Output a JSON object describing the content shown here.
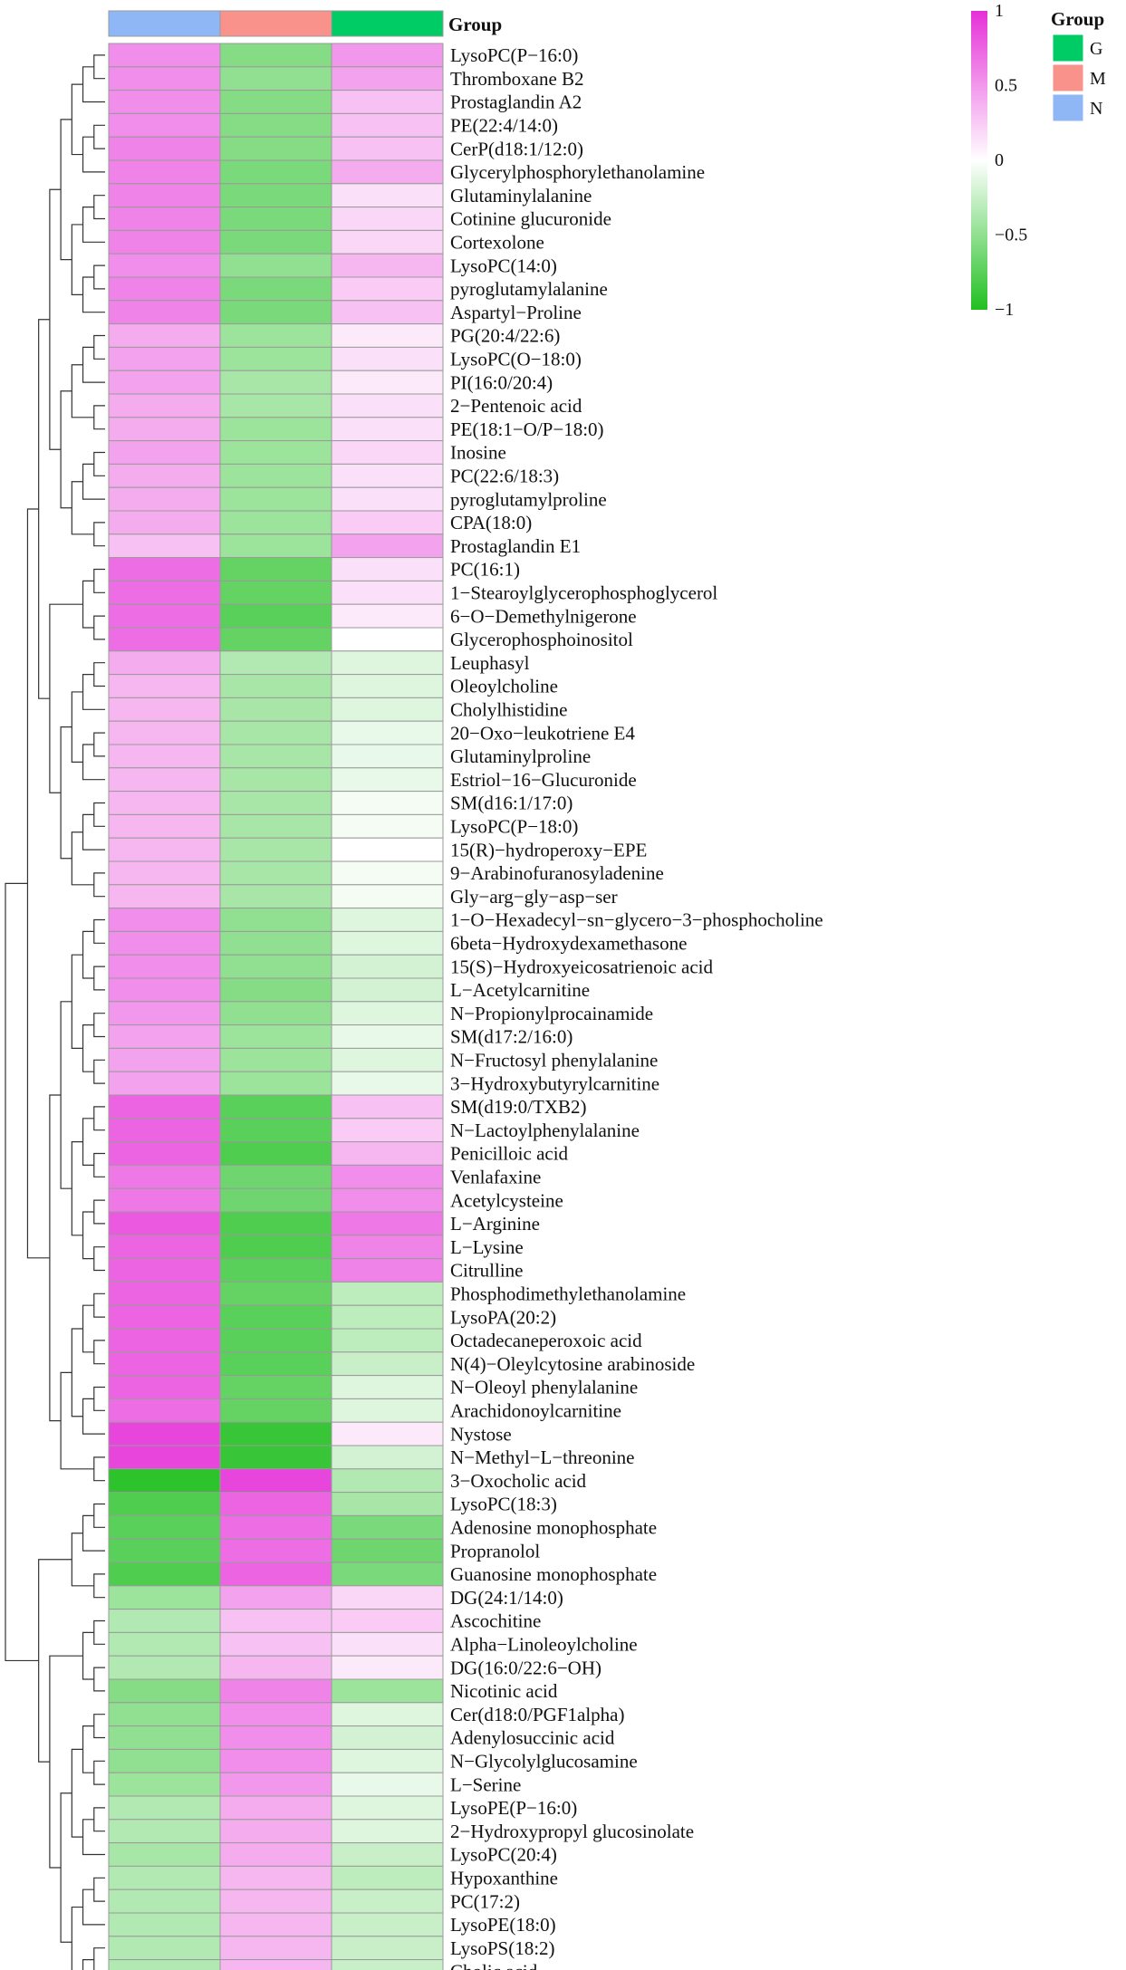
{
  "chart_data": {
    "type": "heatmap",
    "columns": [
      "N",
      "M",
      "G"
    ],
    "annotation": {
      "title": "Group",
      "column_groups": [
        "N",
        "M",
        "G"
      ],
      "legend_entries": [
        {
          "label": "G",
          "color": "#00cc66"
        },
        {
          "label": "M",
          "color": "#f8928a"
        },
        {
          "label": "N",
          "color": "#8fb6f5"
        }
      ]
    },
    "color_scale": {
      "ticks": [
        {
          "value": 1,
          "label": "1"
        },
        {
          "value": 0.5,
          "label": "0.5"
        },
        {
          "value": 0,
          "label": "0"
        },
        {
          "value": -0.5,
          "label": "−0.5"
        },
        {
          "value": -1,
          "label": "−1"
        }
      ],
      "low_color": "#22c022",
      "mid_color": "#ffffff",
      "high_color": "#e530d8",
      "range": [
        -1,
        1
      ]
    },
    "rows": [
      {
        "label": "LysoPC(P−16:0)",
        "values": [
          0.55,
          -0.55,
          0.5
        ]
      },
      {
        "label": "Thromboxane B2",
        "values": [
          0.55,
          -0.5,
          0.45
        ]
      },
      {
        "label": "Prostaglandin A2",
        "values": [
          0.55,
          -0.55,
          0.3
        ]
      },
      {
        "label": "PE(22:4/14:0)",
        "values": [
          0.55,
          -0.55,
          0.3
        ]
      },
      {
        "label": "CerP(d18:1/12:0)",
        "values": [
          0.6,
          -0.55,
          0.3
        ]
      },
      {
        "label": "Glycerylphosphorylethanolamine",
        "values": [
          0.6,
          -0.6,
          0.4
        ]
      },
      {
        "label": "Glutaminylalanine",
        "values": [
          0.6,
          -0.6,
          0.15
        ]
      },
      {
        "label": "Cotinine glucuronide",
        "values": [
          0.6,
          -0.6,
          0.2
        ]
      },
      {
        "label": "Cortexolone",
        "values": [
          0.6,
          -0.6,
          0.2
        ]
      },
      {
        "label": "LysoPC(14:0)",
        "values": [
          0.55,
          -0.5,
          0.35
        ]
      },
      {
        "label": "pyroglutamylalanine",
        "values": [
          0.6,
          -0.6,
          0.25
        ]
      },
      {
        "label": "Aspartyl−Proline",
        "values": [
          0.6,
          -0.6,
          0.3
        ]
      },
      {
        "label": "PG(20:4/22:6)",
        "values": [
          0.4,
          -0.45,
          0.1
        ]
      },
      {
        "label": "LysoPC(O−18:0)",
        "values": [
          0.45,
          -0.45,
          0.15
        ]
      },
      {
        "label": "PI(16:0/20:4)",
        "values": [
          0.45,
          -0.4,
          0.1
        ]
      },
      {
        "label": "2−Pentenoic acid",
        "values": [
          0.4,
          -0.4,
          0.15
        ]
      },
      {
        "label": "PE(18:1−O/P−18:0)",
        "values": [
          0.4,
          -0.45,
          0.15
        ]
      },
      {
        "label": "Inosine",
        "values": [
          0.45,
          -0.45,
          0.2
        ]
      },
      {
        "label": "PC(22:6/18:3)",
        "values": [
          0.4,
          -0.45,
          0.15
        ]
      },
      {
        "label": "pyroglutamylproline",
        "values": [
          0.4,
          -0.45,
          0.15
        ]
      },
      {
        "label": "CPA(18:0)",
        "values": [
          0.4,
          -0.45,
          0.25
        ]
      },
      {
        "label": "Prostaglandin E1",
        "values": [
          0.3,
          -0.45,
          0.45
        ]
      },
      {
        "label": "PC(16:1)",
        "values": [
          0.7,
          -0.7,
          0.15
        ]
      },
      {
        "label": "1−Stearoylglycerophosphoglycerol",
        "values": [
          0.7,
          -0.7,
          0.15
        ]
      },
      {
        "label": "6−O−Demethylnigerone",
        "values": [
          0.7,
          -0.75,
          0.1
        ]
      },
      {
        "label": "Glycerophosphoinositol",
        "values": [
          0.7,
          -0.7,
          0.0
        ]
      },
      {
        "label": "Leuphasyl",
        "values": [
          0.4,
          -0.35,
          -0.15
        ]
      },
      {
        "label": "Oleoylcholine",
        "values": [
          0.35,
          -0.4,
          -0.15
        ]
      },
      {
        "label": "Cholylhistidine",
        "values": [
          0.35,
          -0.4,
          -0.15
        ]
      },
      {
        "label": "20−Oxo−leukotriene E4",
        "values": [
          0.35,
          -0.4,
          -0.1
        ]
      },
      {
        "label": "Glutaminylproline",
        "values": [
          0.35,
          -0.4,
          -0.1
        ]
      },
      {
        "label": "Estriol−16−Glucuronide",
        "values": [
          0.35,
          -0.4,
          -0.1
        ]
      },
      {
        "label": "SM(d16:1/17:0)",
        "values": [
          0.35,
          -0.4,
          -0.05
        ]
      },
      {
        "label": "LysoPC(P−18:0)",
        "values": [
          0.35,
          -0.4,
          -0.05
        ]
      },
      {
        "label": "15(R)−hydroperoxy−EPE",
        "values": [
          0.35,
          -0.4,
          0.0
        ]
      },
      {
        "label": "9−Arabinofuranosyladenine",
        "values": [
          0.35,
          -0.4,
          -0.05
        ]
      },
      {
        "label": "Gly−arg−gly−asp−ser",
        "values": [
          0.35,
          -0.4,
          -0.05
        ]
      },
      {
        "label": "1−O−Hexadecyl−sn−glycero−3−phosphocholine",
        "values": [
          0.55,
          -0.5,
          -0.15
        ]
      },
      {
        "label": "6beta−Hydroxydexamethasone",
        "values": [
          0.55,
          -0.5,
          -0.15
        ]
      },
      {
        "label": "15(S)−Hydroxyeicosatrienoic acid",
        "values": [
          0.55,
          -0.5,
          -0.2
        ]
      },
      {
        "label": "L−Acetylcarnitine",
        "values": [
          0.55,
          -0.55,
          -0.2
        ]
      },
      {
        "label": "N−Propionylprocainamide",
        "values": [
          0.5,
          -0.5,
          -0.15
        ]
      },
      {
        "label": "SM(d17:2/16:0)",
        "values": [
          0.45,
          -0.45,
          -0.1
        ]
      },
      {
        "label": "N−Fructosyl phenylalanine",
        "values": [
          0.45,
          -0.45,
          -0.15
        ]
      },
      {
        "label": "3−Hydroxybutyrylcarnitine",
        "values": [
          0.45,
          -0.45,
          -0.1
        ]
      },
      {
        "label": "SM(d19:0/TXB2)",
        "values": [
          0.75,
          -0.75,
          0.3
        ]
      },
      {
        "label": "N−Lactoylphenylalanine",
        "values": [
          0.75,
          -0.75,
          0.25
        ]
      },
      {
        "label": "Penicilloic acid",
        "values": [
          0.75,
          -0.8,
          0.35
        ]
      },
      {
        "label": "Venlafaxine",
        "values": [
          0.65,
          -0.65,
          0.55
        ]
      },
      {
        "label": "Acetylcysteine",
        "values": [
          0.65,
          -0.65,
          0.55
        ]
      },
      {
        "label": "L−Arginine",
        "values": [
          0.8,
          -0.8,
          0.65
        ]
      },
      {
        "label": "L−Lysine",
        "values": [
          0.75,
          -0.8,
          0.6
        ]
      },
      {
        "label": "Citrulline",
        "values": [
          0.75,
          -0.75,
          0.6
        ]
      },
      {
        "label": "Phosphodimethylethanolamine",
        "values": [
          0.75,
          -0.7,
          -0.3
        ]
      },
      {
        "label": "LysoPA(20:2)",
        "values": [
          0.75,
          -0.75,
          -0.3
        ]
      },
      {
        "label": "Octadecaneperoxoic acid",
        "values": [
          0.75,
          -0.75,
          -0.3
        ]
      },
      {
        "label": "N(4)−Oleylcytosine arabinoside",
        "values": [
          0.75,
          -0.75,
          -0.25
        ]
      },
      {
        "label": "N−Oleoyl phenylalanine",
        "values": [
          0.75,
          -0.7,
          -0.15
        ]
      },
      {
        "label": "Arachidonoylcarnitine",
        "values": [
          0.7,
          -0.7,
          -0.15
        ]
      },
      {
        "label": "Nystose",
        "values": [
          0.9,
          -0.9,
          0.1
        ]
      },
      {
        "label": "N−Methyl−L−threonine",
        "values": [
          0.9,
          -0.9,
          -0.2
        ]
      },
      {
        "label": "3−Oxocholic acid",
        "values": [
          -0.95,
          0.9,
          -0.35
        ]
      },
      {
        "label": "LysoPC(18:3)",
        "values": [
          -0.8,
          0.75,
          -0.4
        ]
      },
      {
        "label": "Adenosine monophosphate",
        "values": [
          -0.75,
          0.7,
          -0.6
        ]
      },
      {
        "label": "Propranolol",
        "values": [
          -0.75,
          0.7,
          -0.65
        ]
      },
      {
        "label": "Guanosine monophosphate",
        "values": [
          -0.8,
          0.75,
          -0.6
        ]
      },
      {
        "label": "DG(24:1/14:0)",
        "values": [
          -0.45,
          0.45,
          0.2
        ]
      },
      {
        "label": "Ascochitine",
        "values": [
          -0.35,
          0.3,
          0.25
        ]
      },
      {
        "label": "Alpha−Linoleoylcholine",
        "values": [
          -0.35,
          0.3,
          0.15
        ]
      },
      {
        "label": "DG(16:0/22:6−OH)",
        "values": [
          -0.35,
          0.35,
          0.1
        ]
      },
      {
        "label": "Nicotinic acid",
        "values": [
          -0.55,
          0.6,
          -0.45
        ]
      },
      {
        "label": "Cer(d18:0/PGF1alpha)",
        "values": [
          -0.5,
          0.55,
          -0.15
        ]
      },
      {
        "label": "Adenylosuccinic acid",
        "values": [
          -0.5,
          0.55,
          -0.2
        ]
      },
      {
        "label": "N−Glycolylglucosamine",
        "values": [
          -0.5,
          0.55,
          -0.15
        ]
      },
      {
        "label": "L−Serine",
        "values": [
          -0.45,
          0.5,
          -0.1
        ]
      },
      {
        "label": "LysoPE(P−16:0)",
        "values": [
          -0.35,
          0.4,
          -0.15
        ]
      },
      {
        "label": "2−Hydroxypropyl glucosinolate",
        "values": [
          -0.35,
          0.4,
          -0.15
        ]
      },
      {
        "label": "LysoPC(20:4)",
        "values": [
          -0.4,
          0.4,
          -0.25
        ]
      },
      {
        "label": "Hypoxanthine",
        "values": [
          -0.35,
          0.35,
          -0.3
        ]
      },
      {
        "label": "PC(17:2)",
        "values": [
          -0.35,
          0.35,
          -0.25
        ]
      },
      {
        "label": "LysoPE(18:0)",
        "values": [
          -0.35,
          0.35,
          -0.25
        ]
      },
      {
        "label": "LysoPS(18:2)",
        "values": [
          -0.35,
          0.35,
          -0.25
        ]
      },
      {
        "label": "Cholic acid",
        "values": [
          -0.35,
          0.35,
          -0.25
        ]
      }
    ]
  }
}
